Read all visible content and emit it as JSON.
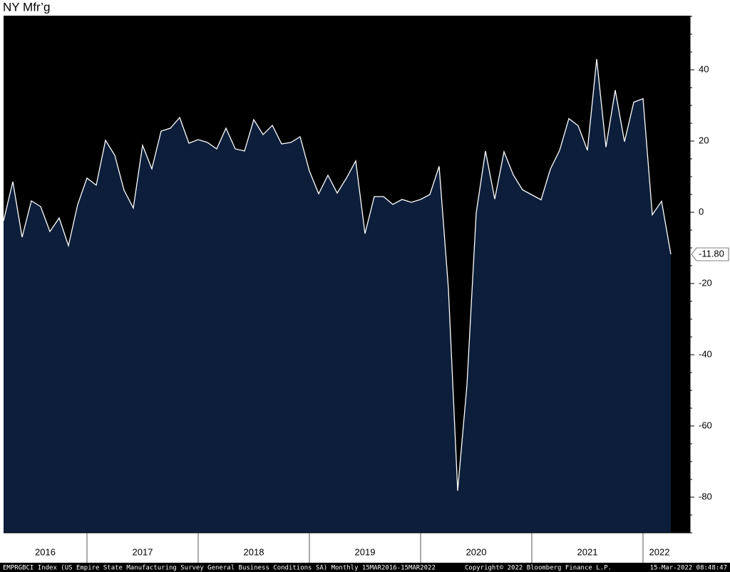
{
  "chart_data": {
    "type": "area",
    "title": "NY Mfr’g",
    "values": [
      -2.4,
      8.6,
      -7,
      3.2,
      1.6,
      -5.4,
      -1.6,
      -9.4,
      2.2,
      9.6,
      7.6,
      20.2,
      16,
      6.2,
      1.2,
      18.8,
      12.2,
      22.8,
      23.6,
      26.6,
      19.4,
      20.4,
      19.6,
      17.8,
      23.6,
      17.8,
      17.2,
      26,
      21.8,
      24.4,
      19.2,
      19.6,
      21.2,
      11.6,
      5.2,
      10.4,
      5.4,
      9.6,
      14.4,
      -6,
      4.4,
      4.4,
      2.2,
      3.6,
      2.8,
      3.6,
      5,
      12.9,
      -21.5,
      -78.2,
      -48.5,
      -0.2,
      17.2,
      3.7,
      17.0,
      10.5,
      6.3,
      4.9,
      3.5,
      12.1,
      17.4,
      26.3,
      24.3,
      17.4,
      43.0,
      18.3,
      34.3,
      19.8,
      30.9,
      31.9,
      -0.7,
      3.1,
      -11.8
    ],
    "value_labels": [
      null,
      null,
      null,
      null,
      null,
      null,
      null,
      null,
      null,
      null,
      null,
      null,
      null,
      null,
      null,
      null,
      null,
      null,
      null,
      null,
      null,
      null,
      null,
      null,
      null,
      null,
      null,
      null,
      null,
      null,
      null,
      null,
      null,
      null,
      null,
      null,
      null,
      null,
      null,
      null,
      null,
      null,
      null,
      null,
      null,
      null,
      null,
      null,
      null,
      null,
      null,
      null,
      null,
      null,
      null,
      null,
      null,
      null,
      null,
      null,
      null,
      null,
      null,
      null,
      null,
      null,
      null,
      null,
      null,
      null,
      null,
      null,
      "-11.80"
    ],
    "x_labels": [
      "2016",
      "2017",
      "2018",
      "2019",
      "2020",
      "2021",
      "2022"
    ],
    "ylim": [
      -90,
      55.2
    ],
    "yticks": [
      -80,
      -60,
      -40,
      -20,
      0,
      20,
      40
    ],
    "fill_color": "#0c1e3a",
    "line_color": "#ffffff",
    "background": "#000000",
    "source": "EMPRGBCI Index (US Empire State Manufacturing Survey General Business Conditions SA)  Monthly 15MAR2016-15MAR2022",
    "copyright": "Copyright© 2022 Bloomberg Finance L.P.",
    "timestamp": "15-Mar-2022 08:48:47"
  }
}
